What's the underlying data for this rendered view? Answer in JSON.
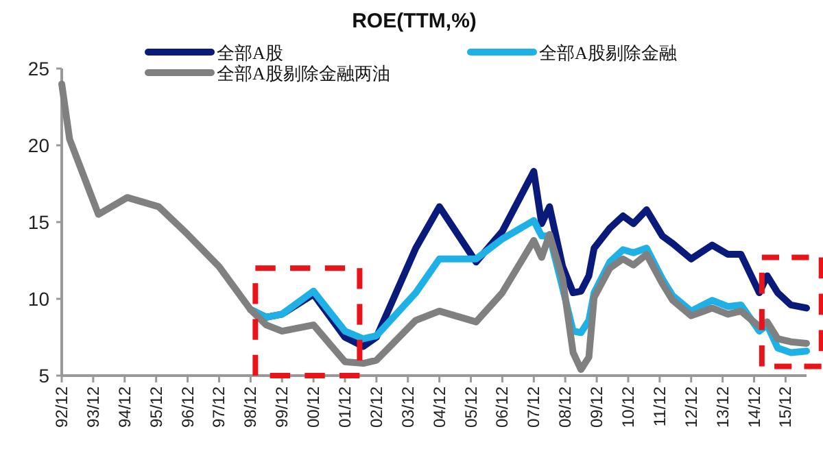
{
  "chart_data": {
    "type": "line",
    "title": "ROE(TTM,%)",
    "legend": "top",
    "grid": false,
    "marker": "none",
    "line_style": "solid",
    "x": [
      "1992-12",
      "1993-03",
      "1994-02",
      "1995-01",
      "1996-01",
      "1996-12",
      "1997-12",
      "1998-12",
      "1999-06",
      "1999-12",
      "2000-12",
      "2001-12",
      "2002-07",
      "2002-12",
      "2004-03",
      "2004-12",
      "2006-02",
      "2006-12",
      "2007-12",
      "2008-03",
      "2008-06",
      "2008-11",
      "2009-03",
      "2009-06",
      "2009-09",
      "2009-11",
      "2010-05",
      "2010-10",
      "2011-02",
      "2011-07",
      "2012-01",
      "2012-05",
      "2012-12",
      "2013-08",
      "2014-02",
      "2014-07",
      "2015-02",
      "2015-05",
      "2015-09",
      "2016-02",
      "2016-08"
    ],
    "series": [
      {
        "name": "全部A股",
        "color": "#0a1a7a",
        "values": [
          null,
          null,
          null,
          null,
          null,
          null,
          null,
          9.3,
          8.8,
          9.0,
          10.3,
          7.5,
          6.9,
          7.5,
          13.3,
          16.0,
          12.4,
          14.4,
          18.3,
          14.9,
          16.0,
          12.1,
          10.4,
          10.5,
          11.5,
          13.3,
          14.6,
          15.4,
          14.9,
          15.8,
          14.1,
          13.6,
          12.6,
          13.5,
          12.9,
          12.9,
          10.4,
          11.5,
          10.4,
          9.6,
          9.4
        ]
      },
      {
        "name": "全部A股剔除金融",
        "color": "#1fb0e6",
        "values": [
          null,
          null,
          null,
          null,
          null,
          null,
          null,
          9.3,
          8.8,
          9.0,
          10.5,
          7.9,
          7.4,
          7.6,
          10.4,
          12.6,
          12.6,
          13.9,
          15.1,
          14.1,
          14.1,
          10.7,
          7.9,
          7.8,
          8.6,
          10.4,
          12.4,
          13.2,
          13.0,
          13.3,
          11.3,
          10.2,
          9.2,
          9.9,
          9.5,
          9.6,
          7.9,
          8.3,
          6.8,
          6.5,
          6.6
        ]
      },
      {
        "name": "全部A股剔除金融两油",
        "color": "#808080",
        "values": [
          24,
          20.4,
          15.5,
          16.6,
          16.0,
          14.2,
          12.1,
          9.3,
          8.3,
          7.9,
          8.3,
          5.9,
          5.8,
          6.0,
          8.6,
          9.2,
          8.5,
          10.4,
          13.8,
          12.7,
          14.2,
          11.3,
          6.5,
          5.4,
          6.2,
          10.1,
          12.0,
          12.6,
          12.2,
          12.9,
          11.0,
          9.9,
          8.9,
          9.4,
          9.0,
          9.2,
          8.2,
          8.5,
          7.4,
          7.2,
          7.1
        ]
      }
    ],
    "xlim": [
      "1992-12",
      "2016-08"
    ],
    "xticks": [
      {
        "value": "1992-12",
        "label": "92/12"
      },
      {
        "value": "1993-12",
        "label": "93/12"
      },
      {
        "value": "1994-12",
        "label": "94/12"
      },
      {
        "value": "1995-12",
        "label": "95/12"
      },
      {
        "value": "1996-12",
        "label": "96/12"
      },
      {
        "value": "1997-12",
        "label": "97/12"
      },
      {
        "value": "1998-12",
        "label": "98/12"
      },
      {
        "value": "1999-12",
        "label": "99/12"
      },
      {
        "value": "2000-12",
        "label": "00/12"
      },
      {
        "value": "2001-12",
        "label": "01/12"
      },
      {
        "value": "2002-12",
        "label": "02/12"
      },
      {
        "value": "2003-12",
        "label": "03/12"
      },
      {
        "value": "2004-12",
        "label": "04/12"
      },
      {
        "value": "2005-12",
        "label": "05/12"
      },
      {
        "value": "2006-12",
        "label": "06/12"
      },
      {
        "value": "2007-12",
        "label": "07/12"
      },
      {
        "value": "2008-12",
        "label": "08/12"
      },
      {
        "value": "2009-12",
        "label": "09/12"
      },
      {
        "value": "2010-12",
        "label": "10/12"
      },
      {
        "value": "2011-12",
        "label": "11/12"
      },
      {
        "value": "2012-12",
        "label": "12/12"
      },
      {
        "value": "2013-12",
        "label": "13/12"
      },
      {
        "value": "2014-12",
        "label": "14/12"
      },
      {
        "value": "2015-12",
        "label": "15/12"
      }
    ],
    "ylim": [
      5,
      25
    ],
    "yticks": [
      5,
      10,
      15,
      20,
      25
    ]
  }
}
